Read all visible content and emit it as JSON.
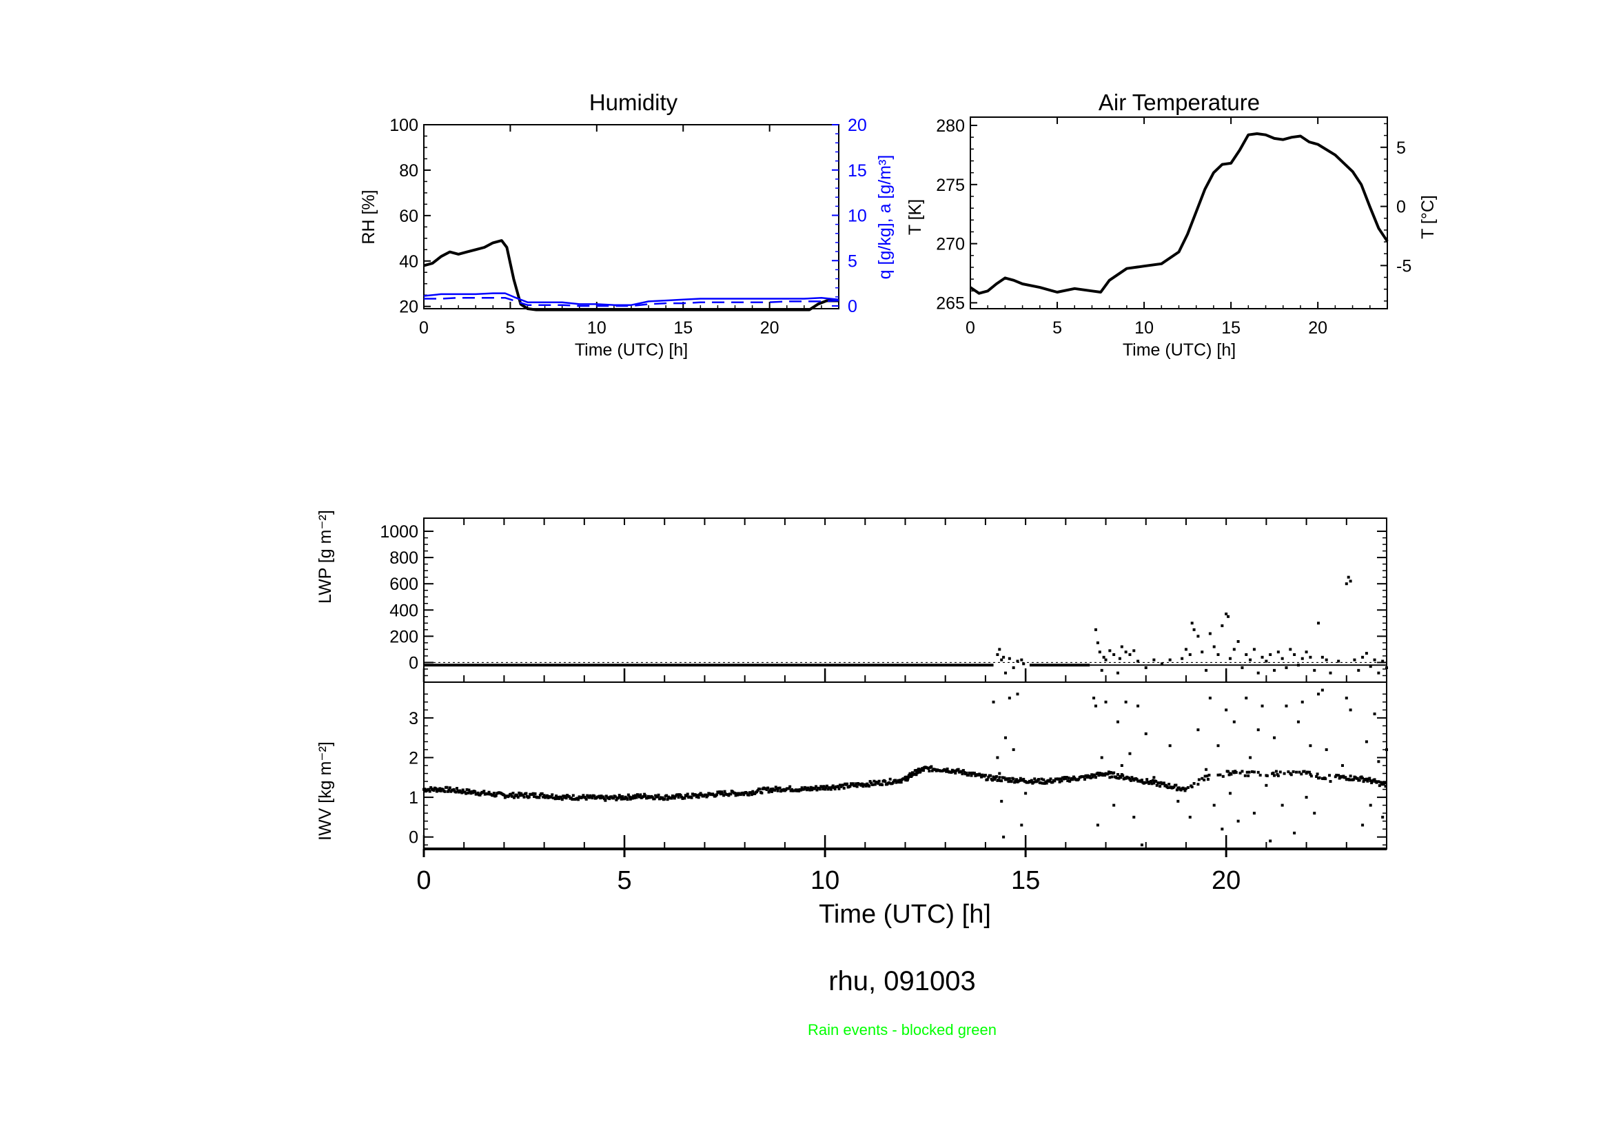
{
  "chart_data": [
    {
      "id": "humidity",
      "type": "line",
      "title": "Humidity",
      "xlabel": "Time (UTC) [h]",
      "ylabel": "RH [%]",
      "ylabel_right": "q [g/kg], a [g/m³]",
      "xlim": [
        0,
        24
      ],
      "ylim": [
        19,
        100
      ],
      "ylim_right": [
        0,
        20
      ],
      "x_ticks": [
        "0",
        "5",
        "10",
        "15",
        "20"
      ],
      "y_ticks": [
        "20",
        "40",
        "60",
        "80",
        "100"
      ],
      "y_ticks_right": [
        "0",
        "5",
        "10",
        "15",
        "20"
      ],
      "series": [
        {
          "name": "RH",
          "color": "#000000",
          "axis": "left",
          "x": [
            0,
            0.5,
            1,
            1.5,
            2,
            2.5,
            3,
            3.5,
            4,
            4.5,
            4.8,
            5.2,
            5.6,
            6,
            6.5,
            7,
            7.5,
            22.3,
            22.8,
            23.3,
            24
          ],
          "y": [
            38,
            39,
            42,
            44,
            43,
            44,
            45,
            46,
            48,
            49,
            46,
            32,
            21,
            19,
            18.5,
            18.5,
            18.5,
            18.5,
            21,
            22.5,
            22.5
          ]
        },
        {
          "name": "q",
          "color": "#0000ff",
          "axis": "right",
          "dash": false,
          "x": [
            0,
            1,
            2,
            3,
            4,
            4.7,
            5.2,
            6,
            7,
            8,
            9,
            10,
            11,
            12,
            13,
            14,
            15,
            16,
            17,
            18,
            19,
            20,
            21,
            22,
            23,
            24
          ],
          "y": [
            1.1,
            1.3,
            1.3,
            1.3,
            1.4,
            1.4,
            1.0,
            0.4,
            0.4,
            0.4,
            0.2,
            0.2,
            0.1,
            0.1,
            0.5,
            0.6,
            0.7,
            0.8,
            0.8,
            0.8,
            0.8,
            0.8,
            0.8,
            0.8,
            0.9,
            0.7
          ]
        },
        {
          "name": "a",
          "color": "#0000ff",
          "axis": "right",
          "dash": true,
          "x": [
            0,
            1,
            2,
            3,
            4,
            4.7,
            5.2,
            6,
            7,
            8,
            9,
            10,
            11,
            12,
            13,
            14,
            15,
            16,
            17,
            18,
            19,
            20,
            21,
            22,
            23,
            24
          ],
          "y": [
            0.8,
            0.8,
            0.9,
            0.9,
            0.9,
            0.9,
            0.6,
            0.1,
            0.1,
            0.1,
            0.0,
            0.0,
            0.0,
            0.0,
            0.2,
            0.3,
            0.3,
            0.4,
            0.4,
            0.4,
            0.4,
            0.4,
            0.5,
            0.5,
            0.5,
            0.6
          ]
        }
      ]
    },
    {
      "id": "air_temperature",
      "type": "line",
      "title": "Air Temperature",
      "xlabel": "Time (UTC) [h]",
      "ylabel": "T [K]",
      "ylabel_right": "T [°C]",
      "xlim": [
        0,
        24
      ],
      "ylim": [
        264.5,
        280.7
      ],
      "x_ticks": [
        "0",
        "5",
        "10",
        "15",
        "20"
      ],
      "y_ticks": [
        "265",
        "270",
        "275",
        "280"
      ],
      "y_ticks_right": [
        "-5",
        "0",
        "5"
      ],
      "series": [
        {
          "name": "T",
          "color": "#000000",
          "x": [
            0,
            0.5,
            1,
            1.5,
            2,
            2.5,
            3,
            4,
            5,
            6,
            7,
            7.5,
            8,
            9,
            10,
            11,
            12,
            12.5,
            13,
            13.5,
            14,
            14.5,
            15,
            15.5,
            16,
            16.5,
            17,
            17.5,
            18,
            18.5,
            19,
            19.5,
            20,
            21,
            22,
            22.5,
            23,
            23.5,
            24
          ],
          "y": [
            266.3,
            265.8,
            266.0,
            266.6,
            267.1,
            266.9,
            266.6,
            266.3,
            265.9,
            266.2,
            266.0,
            265.9,
            266.9,
            267.9,
            268.1,
            268.3,
            269.3,
            270.8,
            272.7,
            274.6,
            276.0,
            276.7,
            276.8,
            277.9,
            279.2,
            279.3,
            279.2,
            278.9,
            278.8,
            279.0,
            279.1,
            278.6,
            278.4,
            277.5,
            276.1,
            275.0,
            273.1,
            271.3,
            270.2
          ]
        }
      ]
    },
    {
      "id": "lwp",
      "type": "scatter",
      "ylabel": "LWP [g m⁻²]",
      "xlim": [
        0,
        24
      ],
      "ylim": [
        -150,
        1100
      ],
      "y_ticks": [
        "0",
        "200",
        "400",
        "600",
        "800",
        "1000"
      ],
      "baseline": -20,
      "flat_segments": [
        [
          0,
          14.2
        ],
        [
          15.1,
          16.6
        ]
      ],
      "scatter_points": [
        [
          14.3,
          60
        ],
        [
          14.35,
          100
        ],
        [
          14.4,
          20
        ],
        [
          14.45,
          40
        ],
        [
          14.5,
          -80
        ],
        [
          14.6,
          30
        ],
        [
          14.7,
          -40
        ],
        [
          14.8,
          10
        ],
        [
          14.9,
          20
        ],
        [
          14.95,
          -10
        ],
        [
          16.75,
          250
        ],
        [
          16.8,
          150
        ],
        [
          16.85,
          80
        ],
        [
          16.9,
          -60
        ],
        [
          16.95,
          40
        ],
        [
          17.0,
          20
        ],
        [
          17.1,
          90
        ],
        [
          17.2,
          60
        ],
        [
          17.3,
          -80
        ],
        [
          17.35,
          30
        ],
        [
          17.4,
          120
        ],
        [
          17.5,
          80
        ],
        [
          17.6,
          60
        ],
        [
          17.7,
          90
        ],
        [
          17.8,
          10
        ],
        [
          18.0,
          -40
        ],
        [
          18.2,
          20
        ],
        [
          18.4,
          -10
        ],
        [
          18.6,
          20
        ],
        [
          18.9,
          30
        ],
        [
          19.0,
          100
        ],
        [
          19.1,
          60
        ],
        [
          19.15,
          300
        ],
        [
          19.2,
          250
        ],
        [
          19.3,
          200
        ],
        [
          19.4,
          80
        ],
        [
          19.5,
          -60
        ],
        [
          19.6,
          220
        ],
        [
          19.7,
          120
        ],
        [
          19.8,
          60
        ],
        [
          19.9,
          280
        ],
        [
          20.0,
          370
        ],
        [
          20.05,
          350
        ],
        [
          20.1,
          30
        ],
        [
          20.2,
          100
        ],
        [
          20.3,
          160
        ],
        [
          20.4,
          -40
        ],
        [
          20.5,
          60
        ],
        [
          20.6,
          20
        ],
        [
          20.7,
          100
        ],
        [
          20.8,
          -80
        ],
        [
          20.9,
          40
        ],
        [
          21.0,
          10
        ],
        [
          21.1,
          60
        ],
        [
          21.2,
          -60
        ],
        [
          21.3,
          80
        ],
        [
          21.4,
          30
        ],
        [
          21.5,
          -40
        ],
        [
          21.6,
          100
        ],
        [
          21.7,
          60
        ],
        [
          21.8,
          -20
        ],
        [
          21.9,
          30
        ],
        [
          22.0,
          80
        ],
        [
          22.1,
          40
        ],
        [
          22.2,
          -60
        ],
        [
          22.3,
          300
        ],
        [
          22.4,
          40
        ],
        [
          22.5,
          20
        ],
        [
          22.6,
          -80
        ],
        [
          22.8,
          10
        ],
        [
          23.0,
          600
        ],
        [
          23.05,
          650
        ],
        [
          23.1,
          620
        ],
        [
          23.2,
          20
        ],
        [
          23.3,
          -60
        ],
        [
          23.4,
          40
        ],
        [
          23.5,
          70
        ],
        [
          23.6,
          -30
        ],
        [
          23.7,
          20
        ],
        [
          23.8,
          -80
        ],
        [
          23.9,
          10
        ],
        [
          24.0,
          -40
        ]
      ]
    },
    {
      "id": "iwv",
      "type": "scatter",
      "ylabel": "IWV [kg m⁻²]",
      "xlabel": "Time (UTC) [h]",
      "xlim": [
        0,
        24
      ],
      "ylim": [
        -0.3,
        3.9
      ],
      "y_ticks": [
        "0",
        "1",
        "2",
        "3"
      ],
      "x_ticks": [
        "0",
        "5",
        "10",
        "15",
        "20"
      ],
      "trend": {
        "x": [
          0,
          0.5,
          1,
          1.5,
          2,
          2.5,
          3,
          3.5,
          4,
          4.5,
          5,
          5.5,
          6,
          6.5,
          7,
          7.5,
          8,
          8.5,
          9,
          9.5,
          10,
          10.5,
          11,
          11.5,
          12,
          12.2,
          12.5,
          13,
          13.5,
          14,
          14.5,
          15,
          15.5,
          16,
          16.5,
          17,
          17.5,
          18,
          18.5,
          19,
          19.5,
          20,
          20.5,
          21,
          21.5,
          22,
          22.5,
          23,
          23.5,
          24
        ],
        "y": [
          1.2,
          1.2,
          1.15,
          1.1,
          1.05,
          1.05,
          1.05,
          1.0,
          1.0,
          0.97,
          1.0,
          1.03,
          1.0,
          1.02,
          1.05,
          1.1,
          1.1,
          1.18,
          1.22,
          1.2,
          1.25,
          1.28,
          1.33,
          1.38,
          1.45,
          1.6,
          1.72,
          1.7,
          1.62,
          1.5,
          1.45,
          1.42,
          1.4,
          1.45,
          1.5,
          1.6,
          1.5,
          1.4,
          1.3,
          1.2,
          1.5,
          1.6,
          1.6,
          1.6,
          1.6,
          1.6,
          1.5,
          1.5,
          1.45,
          1.3
        ]
      },
      "scatter_points": [
        [
          14.2,
          3.4
        ],
        [
          14.3,
          2.0
        ],
        [
          14.35,
          1.6
        ],
        [
          14.4,
          0.9
        ],
        [
          14.45,
          0.0
        ],
        [
          14.5,
          2.5
        ],
        [
          14.6,
          3.5
        ],
        [
          14.7,
          2.2
        ],
        [
          14.8,
          3.6
        ],
        [
          14.9,
          0.3
        ],
        [
          15.0,
          1.1
        ],
        [
          16.7,
          3.5
        ],
        [
          16.75,
          3.3
        ],
        [
          16.8,
          0.3
        ],
        [
          16.9,
          2.0
        ],
        [
          17.0,
          3.4
        ],
        [
          17.1,
          1.5
        ],
        [
          17.2,
          0.8
        ],
        [
          17.3,
          2.9
        ],
        [
          17.4,
          1.8
        ],
        [
          17.5,
          3.4
        ],
        [
          17.6,
          2.1
        ],
        [
          17.7,
          0.5
        ],
        [
          17.8,
          3.3
        ],
        [
          17.9,
          -0.2
        ],
        [
          18.0,
          2.6
        ],
        [
          18.2,
          1.5
        ],
        [
          18.6,
          2.3
        ],
        [
          18.8,
          0.9
        ],
        [
          19.1,
          0.5
        ],
        [
          19.3,
          2.7
        ],
        [
          19.5,
          1.7
        ],
        [
          19.6,
          3.5
        ],
        [
          19.7,
          0.8
        ],
        [
          19.8,
          2.3
        ],
        [
          19.9,
          0.2
        ],
        [
          20.0,
          3.2
        ],
        [
          20.1,
          1.1
        ],
        [
          20.2,
          2.9
        ],
        [
          20.3,
          0.4
        ],
        [
          20.5,
          3.5
        ],
        [
          20.6,
          2.0
        ],
        [
          20.7,
          0.6
        ],
        [
          20.8,
          2.7
        ],
        [
          20.9,
          3.3
        ],
        [
          21.0,
          1.3
        ],
        [
          21.1,
          -0.1
        ],
        [
          21.2,
          2.5
        ],
        [
          21.4,
          0.8
        ],
        [
          21.5,
          3.3
        ],
        [
          21.6,
          1.6
        ],
        [
          21.7,
          0.1
        ],
        [
          21.8,
          2.9
        ],
        [
          21.9,
          3.4
        ],
        [
          22.0,
          1.0
        ],
        [
          22.1,
          2.3
        ],
        [
          22.2,
          0.6
        ],
        [
          22.3,
          3.6
        ],
        [
          22.4,
          3.7
        ],
        [
          22.5,
          2.2
        ],
        [
          22.6,
          1.4
        ],
        [
          22.9,
          1.8
        ],
        [
          23.0,
          3.5
        ],
        [
          23.1,
          3.2
        ],
        [
          23.4,
          0.3
        ],
        [
          23.5,
          2.4
        ],
        [
          23.6,
          0.8
        ],
        [
          23.7,
          3.1
        ],
        [
          23.8,
          1.9
        ],
        [
          23.9,
          0.5
        ],
        [
          24.0,
          2.2
        ]
      ]
    }
  ],
  "footer": {
    "station_label": "rhu, 091003",
    "rain_note": "Rain events - blocked green"
  }
}
